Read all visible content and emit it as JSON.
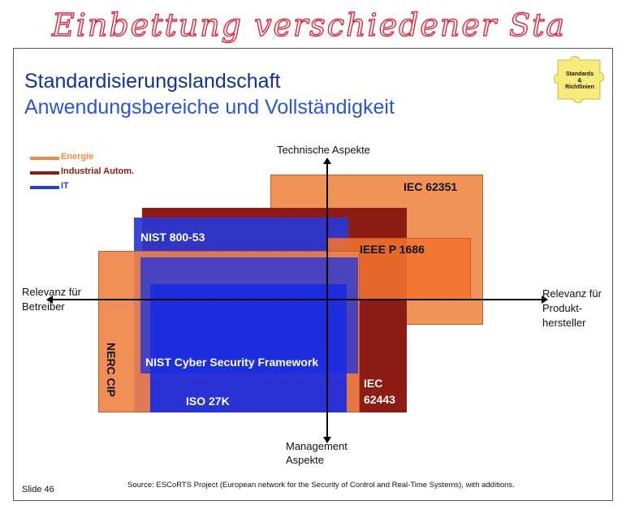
{
  "handwritten_heading": "Einbettung verschiedener Standards",
  "title_line1": "Standardisierungslandschaft",
  "title_line2": "Anwendungsbereiche und Vollständigkeit",
  "puzzle": {
    "line1": "Standards",
    "line2": "&",
    "line3": "Richtlinien",
    "color": "#f7ec7a"
  },
  "legend": [
    {
      "label": "Energie",
      "color": "#f08a45"
    },
    {
      "label": "Industrial Autom.",
      "color": "#8b1a14"
    },
    {
      "label": "IT",
      "color": "#1f3fd8"
    }
  ],
  "standards": {
    "iec62351": "IEC 62351",
    "nist80053": "NIST 800-53",
    "ieeep1686": "IEEE P 1686",
    "nerc": "NERC CIP",
    "nistcsf": "NIST Cyber Security  Framework",
    "iec62443_line1": "IEC",
    "iec62443_line2": "62443",
    "iso27k": "ISO 27K"
  },
  "axes": {
    "top": "Technische Aspekte",
    "bottom_line1": "Management",
    "bottom_line2": "Aspekte",
    "left_line1": "Relevanz für",
    "left_line2": "Betreiber",
    "right_line1": "Relevanz für",
    "right_line2": "Produkt-",
    "right_line3": "hersteller"
  },
  "footer": {
    "slide": "Slide 46",
    "source": "Source: ESCoRTS Project (European network for the Security of Control and Real-Time Systems), with additions."
  }
}
